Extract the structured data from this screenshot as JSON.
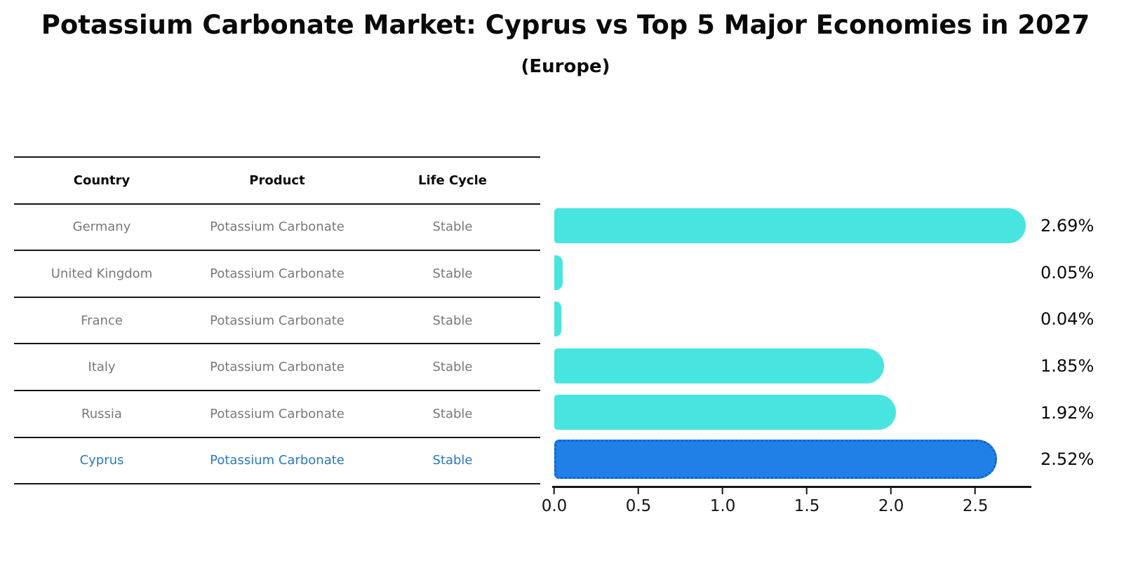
{
  "chart_data": {
    "type": "bar",
    "orientation": "horizontal",
    "title": "Potassium Carbonate Market: Cyprus vs Top 5 Major Economies in 2027",
    "subtitle": "(Europe)",
    "categories": [
      "Germany",
      "United Kingdom",
      "France",
      "Italy",
      "Russia",
      "Cyprus"
    ],
    "values": [
      2.69,
      0.05,
      0.04,
      1.85,
      1.92,
      2.52
    ],
    "value_labels": [
      "2.69%",
      "0.05%",
      "0.04%",
      "1.85%",
      "1.92%",
      "2.52%"
    ],
    "highlight_index": 5,
    "xlabel": "",
    "ylabel": "",
    "xlim": [
      0,
      2.82
    ],
    "x_ticks": [
      "0.0",
      "0.5",
      "1.0",
      "1.5",
      "2.0",
      "2.5"
    ],
    "x_tick_values": [
      0,
      0.5,
      1.0,
      1.5,
      2.0,
      2.5
    ],
    "grid": false,
    "legend": false
  },
  "table": {
    "headers": [
      "Country",
      "Product",
      "Life Cycle"
    ],
    "rows": [
      {
        "country": "Germany",
        "product": "Potassium Carbonate",
        "life_cycle": "Stable"
      },
      {
        "country": "United Kingdom",
        "product": "Potassium Carbonate",
        "life_cycle": "Stable"
      },
      {
        "country": "France",
        "product": "Potassium Carbonate",
        "life_cycle": "Stable"
      },
      {
        "country": "Italy",
        "product": "Potassium Carbonate",
        "life_cycle": "Stable"
      },
      {
        "country": "Russia",
        "product": "Potassium Carbonate",
        "life_cycle": "Stable"
      },
      {
        "country": "Cyprus",
        "product": "Potassium Carbonate",
        "life_cycle": "Stable"
      }
    ]
  },
  "colors": {
    "bar_color": "#48e5e0",
    "highlight_color": "#2080e8",
    "highlight_border": "#0f62cc",
    "table_text": "#787878",
    "highlight_text": "#2878c0"
  }
}
